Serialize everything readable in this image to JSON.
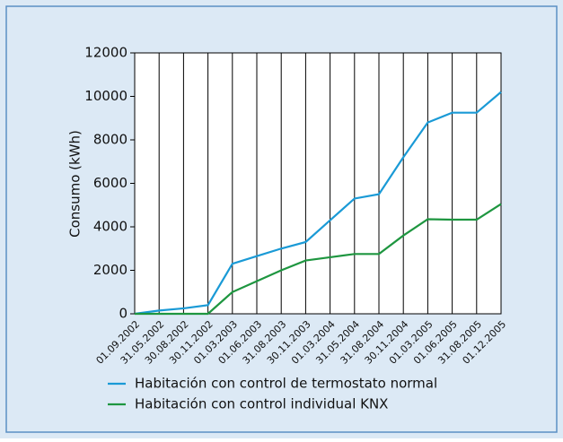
{
  "chart_data": {
    "type": "line",
    "categories": [
      "01.09.2002",
      "31.05.2002",
      "30.08.2002",
      "30.11.2002",
      "01.03.2003",
      "01.06.2003",
      "31.08.2003",
      "30.11.2003",
      "01.03.2004",
      "31.05.2004",
      "31.08.2004",
      "30.11.2004",
      "01.03.2005",
      "01.06.2005",
      "31.08.2005",
      "01.12.2005"
    ],
    "series": [
      {
        "name": "Habitación con control de termostato normal",
        "color": "#1a9ad6",
        "values": [
          0,
          150,
          250,
          400,
          2300,
          2650,
          3000,
          3300,
          4300,
          5300,
          5500,
          7200,
          8800,
          9250,
          9250,
          10200
        ]
      },
      {
        "name": "Habitación con control individual KNX",
        "color": "#1e9640",
        "values": [
          0,
          0,
          0,
          0,
          1000,
          1500,
          2000,
          2450,
          2600,
          2750,
          2750,
          3600,
          4350,
          4330,
          4330,
          5050
        ]
      }
    ],
    "ylabel": "Consumo (kWh)",
    "ylim": [
      0,
      12000
    ],
    "yticks": [
      0,
      2000,
      4000,
      6000,
      8000,
      10000,
      12000
    ],
    "grid": true,
    "legend": "bottom"
  }
}
